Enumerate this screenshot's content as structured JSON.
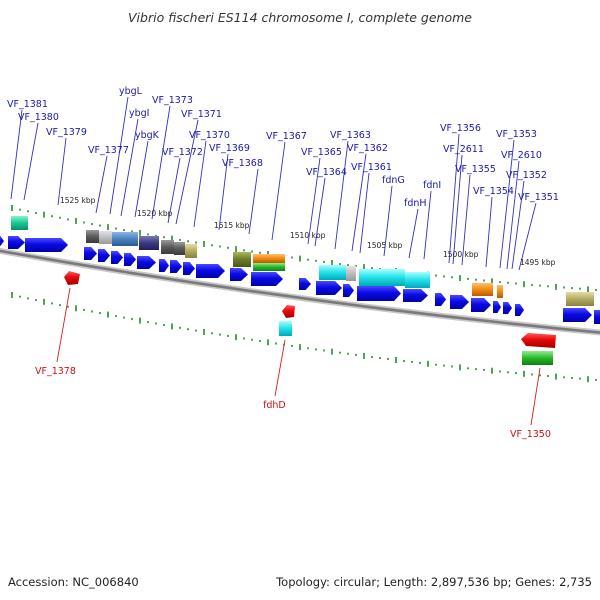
{
  "title": "Vibrio fischeri ES114 chromosome I, complete genome",
  "footer": {
    "accession": "Accession: NC_006840",
    "stats": "Topology: circular; Length: 2,897,536 bp; Genes: 2,735"
  },
  "colors": {
    "forward_cds": "#1010e0",
    "reverse_cds": "#e01010",
    "backbone": "#8c8c8c",
    "tick": "#2a8a2a",
    "label_blue": "#1a1aa8",
    "label_red": "#c81414",
    "leader_blue": "#3030c0",
    "leader_red": "#d02020"
  },
  "ruler": [
    "1525 kbp",
    "1520 kbp",
    "1515 kbp",
    "1510 kbp",
    "1505 kbp",
    "1500 kbp",
    "1495 kbp"
  ],
  "forward_labels": [
    "VF_1381",
    "VF_1380",
    "VF_1379",
    "VF_1377",
    "ybgL",
    "ybgI",
    "ybgK",
    "VF_1373",
    "VF_1372",
    "VF_1371",
    "VF_1370",
    "VF_1369",
    "VF_1368",
    "VF_1367",
    "VF_1365",
    "VF_1364",
    "VF_1363",
    "VF_1362",
    "VF_1361",
    "fdnG",
    "fdnH",
    "fdnI",
    "VF_1356",
    "VF_2611",
    "VF_1355",
    "VF_1354",
    "VF_1353",
    "VF_2610",
    "VF_1352",
    "VF_1351"
  ],
  "reverse_labels": [
    "VF_1378",
    "fdhD",
    "VF_1350"
  ]
}
